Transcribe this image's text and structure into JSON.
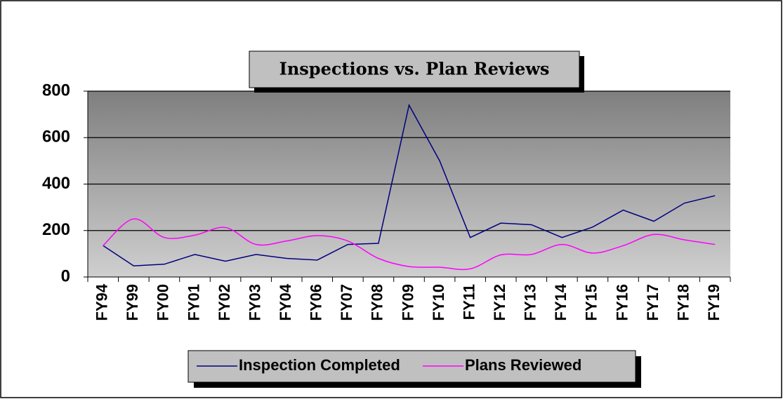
{
  "chart_data": {
    "type": "line",
    "title": "Inspections vs. Plan Reviews",
    "categories": [
      "FY94",
      "FY99",
      "FY00",
      "FY01",
      "FY02",
      "FY03",
      "FY04",
      "FY06",
      "FY07",
      "FY08",
      "FY09",
      "FY10",
      "FY11",
      "FY12",
      "FY13",
      "FY14",
      "FY15",
      "FY16",
      "FY17",
      "FY18",
      "FY19"
    ],
    "series": [
      {
        "name": "Inspection Completed",
        "color": "#000080",
        "smooth": false,
        "values": [
          135,
          48,
          55,
          97,
          68,
          97,
          80,
          73,
          140,
          145,
          740,
          500,
          170,
          232,
          225,
          170,
          215,
          288,
          240,
          318,
          350
        ]
      },
      {
        "name": "Plans Reviewed",
        "color": "#ff00ff",
        "smooth": true,
        "values": [
          135,
          250,
          170,
          180,
          213,
          140,
          155,
          178,
          155,
          80,
          45,
          42,
          35,
          95,
          97,
          140,
          103,
          135,
          183,
          160,
          140
        ]
      }
    ],
    "ylim": [
      0,
      800
    ],
    "yticks": [
      0,
      200,
      400,
      600,
      800
    ],
    "grid": true,
    "legend": "bottom"
  }
}
